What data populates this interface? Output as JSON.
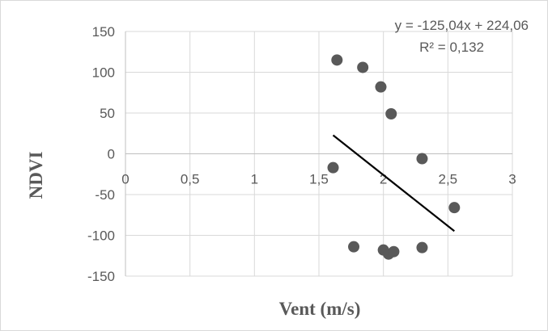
{
  "chart_data": {
    "type": "scatter",
    "title": "",
    "xlabel": "Vent (m/s)",
    "ylabel": "NDVI",
    "xlim": [
      0,
      3
    ],
    "ylim": [
      -150,
      150
    ],
    "x_ticks": [
      0,
      0.5,
      1,
      1.5,
      2,
      2.5,
      3
    ],
    "x_tick_labels": [
      "0",
      "0,5",
      "1",
      "1,5",
      "2",
      "2,5",
      "3"
    ],
    "y_ticks": [
      150,
      100,
      50,
      0,
      -50,
      -100,
      -150
    ],
    "y_tick_labels": [
      "150",
      "100",
      "50",
      "0",
      "-50",
      "-100",
      "-150"
    ],
    "grid": true,
    "legend": "none",
    "points": [
      {
        "x": 1.64,
        "y": 115
      },
      {
        "x": 1.84,
        "y": 106
      },
      {
        "x": 1.98,
        "y": 82
      },
      {
        "x": 2.06,
        "y": 49
      },
      {
        "x": 1.61,
        "y": -17
      },
      {
        "x": 2.3,
        "y": -6
      },
      {
        "x": 2.55,
        "y": -66
      },
      {
        "x": 1.77,
        "y": -114
      },
      {
        "x": 2.0,
        "y": -118
      },
      {
        "x": 2.04,
        "y": -123
      },
      {
        "x": 2.08,
        "y": -120
      },
      {
        "x": 2.3,
        "y": -115
      }
    ],
    "trendline": {
      "slope": -125.04,
      "intercept": 224.06,
      "x_range": [
        1.61,
        2.55
      ],
      "equation": "y = -125,04x + 224,06",
      "r2_text": "R² = 0,132"
    },
    "colors": {
      "marker": "#595959",
      "trendline": "#000000",
      "grid": "#d9d9d9",
      "axis": "#bfbfbf",
      "text": "#595959"
    }
  }
}
